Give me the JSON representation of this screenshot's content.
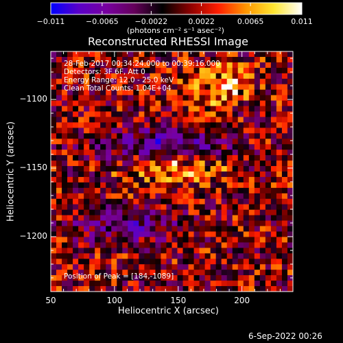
{
  "colorbar": {
    "ticks": [
      -0.011,
      -0.0065,
      -0.0022,
      0.0022,
      0.0065,
      0.011
    ],
    "tick_labels": [
      "−0.011",
      "−0.0065",
      "−0.0022",
      "0.0022",
      "0.0065",
      "0.011"
    ],
    "units": "(photons cm⁻² s⁻¹ asec⁻²)",
    "range": [
      -0.011,
      0.011
    ],
    "colors": [
      "#0000ff",
      "#5a00c8",
      "#7800a0",
      "#64005a",
      "#000000",
      "#8c0000",
      "#ff1e00",
      "#ff9600",
      "#ffe632",
      "#ffffff"
    ]
  },
  "chart_data": {
    "type": "heatmap",
    "title": "Reconstructed RHESSI Image",
    "xlabel": "Heliocentric X (arcsec)",
    "ylabel": "Heliocentric Y (arcsec)",
    "xlim": [
      50,
      240
    ],
    "ylim": [
      -1240,
      -1065
    ],
    "xticks": [
      50,
      100,
      150,
      200
    ],
    "yticks": [
      -1100,
      -1150,
      -1200
    ],
    "grid": false,
    "colorscale_range": [
      -0.011,
      0.011
    ],
    "peak": {
      "x": 184,
      "y": -1089
    },
    "annotations": [
      "28-Feb-2017 00:34:24.000 to 00:39:16.000",
      "Detectors: 3F 6F, Att 0",
      "Energy Range: 12.0 - 25.0 keV",
      "Clean    Total Counts: 1.04E+04",
      "Position of Peak = [184,-1089]"
    ]
  },
  "footer": {
    "timestamp": "6-Sep-2022 00:26"
  }
}
